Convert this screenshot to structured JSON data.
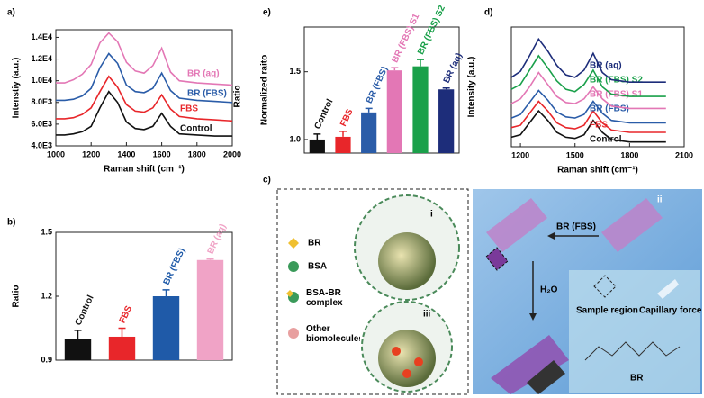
{
  "chart_data": [
    {
      "type": "line",
      "label": "a)",
      "annotation": "Ratio",
      "xlabel": "Raman shift (cm⁻¹)",
      "ylabel": "Intenstiy (a.u.)",
      "x": [
        1000,
        1050,
        1100,
        1150,
        1200,
        1250,
        1300,
        1350,
        1400,
        1450,
        1500,
        1550,
        1600,
        1650,
        1700,
        1800,
        1900,
        2000
      ],
      "xlim": [
        1000,
        2000
      ],
      "xticks": [
        1000,
        1200,
        1400,
        1600,
        1800,
        2000
      ],
      "ylim": [
        4000,
        14700
      ],
      "yticks": [
        {
          "value": 4000,
          "label": "4.0E3"
        },
        {
          "value": 6000,
          "label": "6.0E3"
        },
        {
          "value": 8000,
          "label": "8.0E3"
        },
        {
          "value": 10000,
          "label": "1.0E4"
        },
        {
          "value": 12000,
          "label": "1.2E4"
        },
        {
          "value": 14000,
          "label": "1.4E4"
        }
      ],
      "series": [
        {
          "name": "Control",
          "color": "#111111",
          "values": [
            5000,
            5000,
            5100,
            5300,
            5800,
            7500,
            9000,
            8000,
            6200,
            5600,
            5500,
            5800,
            7000,
            5800,
            5100,
            5000,
            4900,
            4900
          ]
        },
        {
          "name": "FBS",
          "color": "#e8262a",
          "values": [
            6500,
            6500,
            6600,
            6900,
            7500,
            9000,
            10400,
            9400,
            7800,
            7200,
            7100,
            7500,
            8700,
            7400,
            6700,
            6500,
            6400,
            6300
          ]
        },
        {
          "name": "BR (FBS)",
          "color": "#2a5ca8",
          "values": [
            8200,
            8200,
            8300,
            8600,
            9300,
            11200,
            12500,
            11600,
            9600,
            9000,
            8900,
            9300,
            10700,
            9100,
            8400,
            8200,
            8100,
            8000
          ]
        },
        {
          "name": "BR (aq)",
          "color": "#e377b5",
          "values": [
            9800,
            9800,
            10100,
            10600,
            11500,
            13500,
            14400,
            13600,
            11700,
            10900,
            10700,
            11400,
            13000,
            10800,
            10000,
            9800,
            9700,
            9600
          ]
        }
      ]
    },
    {
      "type": "bar",
      "label": "b)",
      "ylabel": "Ratio",
      "categories": [
        "Control",
        "FBS",
        "BR (FBS)",
        "BR (aq)"
      ],
      "values": [
        1.0,
        1.01,
        1.2,
        1.37
      ],
      "errors": [
        0.04,
        0.04,
        0.03,
        0.005
      ],
      "colors": [
        "#111111",
        "#e8262a",
        "#1f5aa8",
        "#f0a3c6"
      ],
      "ylim": [
        0.9,
        1.5
      ],
      "yticks": [
        0.9,
        1.2,
        1.5
      ]
    },
    {
      "type": "bar",
      "label": "e)",
      "ylabel": "Normalized raito",
      "categories": [
        "Control",
        "FBS",
        "BR (FBS)",
        "BR (FBS)  S1",
        "BR (FBS)  S2",
        "BR (aq)"
      ],
      "values": [
        1.0,
        1.02,
        1.2,
        1.51,
        1.54,
        1.37
      ],
      "errors": [
        0.04,
        0.04,
        0.03,
        0.02,
        0.05,
        0.01
      ],
      "colors": [
        "#111111",
        "#e8262a",
        "#2a5ca8",
        "#e377b5",
        "#1aa04a",
        "#1d2d7a"
      ],
      "ylim": [
        0.9,
        1.83
      ],
      "yticks": [
        {
          "value": 1,
          "label": "1.0"
        },
        1.5
      ]
    },
    {
      "type": "line",
      "label": "d)",
      "xlabel": "Raman shift (cm⁻¹)",
      "ylabel": "Intensity (a.u.)",
      "x": [
        1150,
        1200,
        1250,
        1300,
        1350,
        1400,
        1450,
        1500,
        1550,
        1600,
        1650,
        1700,
        1800,
        1900,
        2000
      ],
      "xlim": [
        1150,
        2100
      ],
      "xticks": [
        1200,
        1500,
        1800,
        2100
      ],
      "ylim": [
        0,
        100
      ],
      "series": [
        {
          "name": "Control",
          "color": "#111111",
          "values": [
            8,
            10,
            20,
            30,
            22,
            12,
            8,
            7,
            10,
            22,
            12,
            6,
            4,
            4,
            4
          ]
        },
        {
          "name": "FBS",
          "color": "#e8262a",
          "values": [
            16,
            18,
            28,
            38,
            30,
            20,
            16,
            15,
            18,
            30,
            20,
            14,
            12,
            12,
            12
          ]
        },
        {
          "name": "BR (FBS)",
          "color": "#2a5ca8",
          "values": [
            24,
            27,
            37,
            47,
            39,
            29,
            25,
            24,
            27,
            38,
            28,
            22,
            20,
            20,
            20
          ]
        },
        {
          "name": "BR (FBS)  S1",
          "color": "#e377b5",
          "values": [
            36,
            40,
            50,
            62,
            52,
            42,
            37,
            36,
            40,
            50,
            40,
            34,
            32,
            32,
            32
          ]
        },
        {
          "name": "BR (FBS)  S2",
          "color": "#1aa04a",
          "values": [
            48,
            52,
            64,
            76,
            66,
            55,
            48,
            46,
            52,
            64,
            50,
            44,
            42,
            42,
            42
          ]
        },
        {
          "name": "BR (aq)",
          "color": "#1d2d7a",
          "values": [
            58,
            63,
            76,
            90,
            80,
            68,
            60,
            58,
            64,
            78,
            62,
            56,
            54,
            54,
            54
          ]
        }
      ]
    }
  ],
  "diagram": {
    "label": "c)",
    "legend": [
      "BR",
      "BSA",
      "BSA-BR complex",
      "Other biomolecules"
    ],
    "panels": [
      "i",
      "ii",
      "iii"
    ],
    "flow": "BR (FBS)",
    "wash": "H₂O",
    "key": [
      "Sample region",
      "Capillary force"
    ],
    "molecule": "BR"
  }
}
